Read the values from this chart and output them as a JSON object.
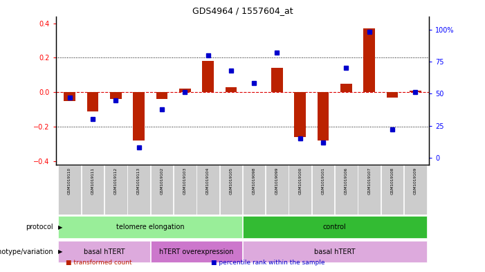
{
  "title": "GDS4964 / 1557604_at",
  "samples": [
    "GSM1019110",
    "GSM1019111",
    "GSM1019112",
    "GSM1019113",
    "GSM1019102",
    "GSM1019103",
    "GSM1019104",
    "GSM1019105",
    "GSM1019098",
    "GSM1019099",
    "GSM1019100",
    "GSM1019101",
    "GSM1019106",
    "GSM1019107",
    "GSM1019108",
    "GSM1019109"
  ],
  "bar_values": [
    -0.05,
    -0.11,
    -0.04,
    -0.28,
    -0.04,
    0.02,
    0.18,
    0.03,
    0.0,
    0.14,
    -0.26,
    -0.28,
    0.05,
    0.37,
    -0.03,
    0.01
  ],
  "dot_values": [
    47,
    30,
    45,
    8,
    38,
    51,
    80,
    68,
    58,
    82,
    15,
    12,
    70,
    98,
    22,
    51
  ],
  "ylim_left": [
    -0.42,
    0.44
  ],
  "ylim_right": [
    -5.25,
    110.25
  ],
  "yticks_left": [
    -0.4,
    -0.2,
    0.0,
    0.2,
    0.4
  ],
  "yticks_right": [
    0,
    25,
    50,
    75,
    100
  ],
  "ytick_labels_right": [
    "0",
    "25",
    "50",
    "75",
    "100%"
  ],
  "bar_color": "#bb2200",
  "dot_color": "#0000cc",
  "zero_line_color": "#dd0000",
  "grid_color": "#000000",
  "protocol_groups": [
    {
      "label": "telomere elongation",
      "start": 0,
      "end": 7,
      "color": "#99ee99"
    },
    {
      "label": "control",
      "start": 8,
      "end": 15,
      "color": "#33bb33"
    }
  ],
  "genotype_groups": [
    {
      "label": "basal hTERT",
      "start": 0,
      "end": 3,
      "color": "#ddaadd"
    },
    {
      "label": "hTERT overexpression",
      "start": 4,
      "end": 7,
      "color": "#cc77cc"
    },
    {
      "label": "basal hTERT",
      "start": 8,
      "end": 15,
      "color": "#ddaadd"
    }
  ],
  "protocol_label": "protocol",
  "genotype_label": "genotype/variation",
  "legend_items": [
    {
      "label": "transformed count",
      "color": "#bb2200"
    },
    {
      "label": "percentile rank within the sample",
      "color": "#0000cc"
    }
  ],
  "sample_box_color": "#cccccc",
  "bar_width": 0.5
}
